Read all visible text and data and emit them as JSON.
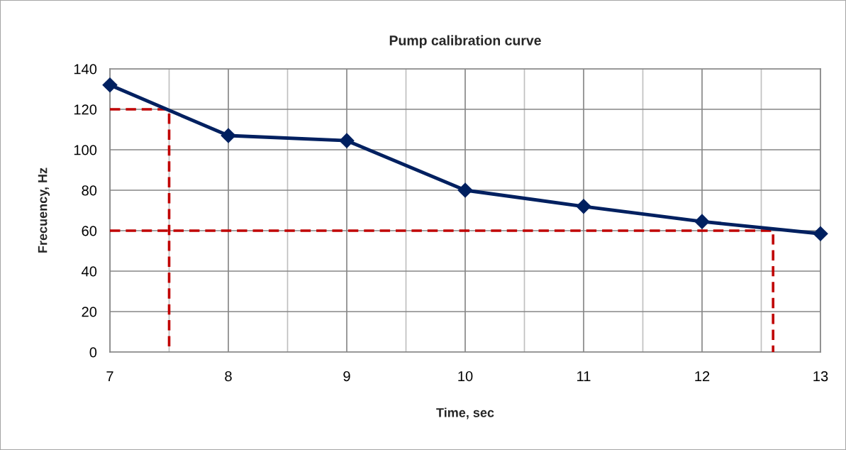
{
  "chart_data": {
    "type": "line",
    "title": "Pump calibration curve",
    "xlabel": "Time, sec",
    "ylabel": "Frecuency, Hz",
    "xlim": [
      7,
      13
    ],
    "ylim": [
      0,
      140
    ],
    "xticks": [
      7,
      {
        "value": 7.5,
        "label": null
      },
      8,
      {
        "value": 8.5,
        "label": null
      },
      9,
      {
        "value": 9.5,
        "label": null
      },
      10,
      {
        "value": 10.5,
        "label": null
      },
      11,
      {
        "value": 11.5,
        "label": null
      },
      12,
      {
        "value": 12.5,
        "label": null
      },
      13
    ],
    "yticks": [
      0,
      20,
      40,
      60,
      80,
      100,
      120,
      140
    ],
    "grid": true,
    "marker": "diamond",
    "line_style": "solid",
    "series": [
      {
        "color": "#002060",
        "x": [
          7,
          8,
          9,
          10,
          11,
          12,
          13
        ],
        "values": [
          132,
          107,
          104.5,
          80,
          72,
          64.5,
          58.5
        ]
      },
      {
        "color": "#c00000",
        "type": "line",
        "marker": "none",
        "line_style": "dashed",
        "x": [
          7,
          7.5,
          7.5
        ],
        "values": [
          120,
          120,
          0
        ]
      },
      {
        "color": "#c00000",
        "type": "line",
        "marker": "none",
        "line_style": "dashed",
        "x": [
          7,
          12.6,
          12.6
        ],
        "values": [
          60,
          60,
          0
        ]
      }
    ]
  }
}
